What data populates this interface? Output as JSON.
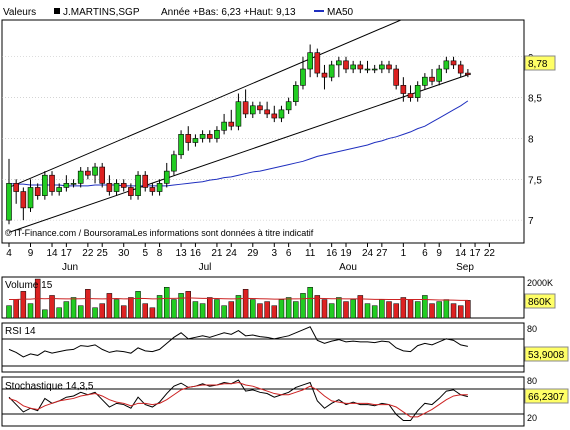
{
  "colors": {
    "up": "#22cc22",
    "down": "#dd2222",
    "ma50": "#1f2fbf",
    "badge_bg": "#ffff66",
    "panel_border": "#000000",
    "signal": "#cc2222",
    "fill": "#e8e8e8"
  },
  "header": {
    "valeurs": "Valeurs",
    "symbol": "J.MARTINS,SGP",
    "stats": "Année +Bas: 6,23 +Haut: 9,13",
    "ma_label": "MA50"
  },
  "source_note": "© IT-Finance.com / BoursoramaLes informations sont données à titre indicatif",
  "x_axis": {
    "day_labels": [
      "4",
      "9",
      "14",
      "17",
      "22",
      "25",
      "30",
      "5",
      "8",
      "13",
      "16",
      "21",
      "24",
      "29",
      "3",
      "6",
      "11",
      "16",
      "19",
      "24",
      "27",
      "1",
      "6",
      "9",
      "14",
      "17",
      "22"
    ],
    "month_labels": [
      "Jun",
      "Jul",
      "Aou",
      "Sep"
    ]
  },
  "chart_data": [
    {
      "type": "candlestick",
      "name": "price",
      "ylim": [
        6.72,
        9.45
      ],
      "y_ticks": [
        "7",
        "7,5",
        "8",
        "8,5",
        "9"
      ],
      "last_value_badge": "8,78",
      "candles": [
        [
          7.0,
          7.75,
          6.95,
          7.45
        ],
        [
          7.45,
          7.5,
          7.2,
          7.35
        ],
        [
          7.35,
          7.4,
          7.0,
          7.15
        ],
        [
          7.15,
          7.5,
          7.1,
          7.4
        ],
        [
          7.4,
          7.45,
          7.25,
          7.3
        ],
        [
          7.3,
          7.6,
          7.25,
          7.55
        ],
        [
          7.55,
          7.6,
          7.3,
          7.35
        ],
        [
          7.35,
          7.45,
          7.3,
          7.4
        ],
        [
          7.4,
          7.55,
          7.35,
          7.45
        ],
        [
          7.45,
          7.5,
          7.4,
          7.45
        ],
        [
          7.45,
          7.65,
          7.4,
          7.6
        ],
        [
          7.6,
          7.65,
          7.5,
          7.55
        ],
        [
          7.55,
          7.7,
          7.45,
          7.65
        ],
        [
          7.65,
          7.7,
          7.4,
          7.45
        ],
        [
          7.45,
          7.55,
          7.3,
          7.35
        ],
        [
          7.35,
          7.5,
          7.3,
          7.45
        ],
        [
          7.45,
          7.5,
          7.35,
          7.4
        ],
        [
          7.4,
          7.45,
          7.25,
          7.3
        ],
        [
          7.3,
          7.6,
          7.25,
          7.55
        ],
        [
          7.55,
          7.6,
          7.35,
          7.4
        ],
        [
          7.4,
          7.45,
          7.3,
          7.35
        ],
        [
          7.35,
          7.5,
          7.3,
          7.45
        ],
        [
          7.45,
          7.7,
          7.4,
          7.6
        ],
        [
          7.6,
          7.85,
          7.55,
          7.8
        ],
        [
          7.8,
          8.1,
          7.75,
          8.05
        ],
        [
          8.05,
          8.15,
          7.85,
          7.95
        ],
        [
          7.95,
          8.05,
          7.9,
          8.0
        ],
        [
          8.0,
          8.1,
          7.95,
          8.05
        ],
        [
          8.05,
          8.1,
          7.95,
          8.0
        ],
        [
          8.0,
          8.15,
          7.95,
          8.1
        ],
        [
          8.1,
          8.3,
          8.05,
          8.2
        ],
        [
          8.2,
          8.35,
          8.1,
          8.15
        ],
        [
          8.15,
          8.55,
          8.1,
          8.45
        ],
        [
          8.45,
          8.6,
          8.25,
          8.3
        ],
        [
          8.3,
          8.45,
          8.25,
          8.4
        ],
        [
          8.4,
          8.45,
          8.3,
          8.35
        ],
        [
          8.35,
          8.45,
          8.25,
          8.3
        ],
        [
          8.3,
          8.4,
          8.2,
          8.25
        ],
        [
          8.25,
          8.4,
          8.2,
          8.35
        ],
        [
          8.35,
          8.5,
          8.3,
          8.45
        ],
        [
          8.45,
          8.7,
          8.4,
          8.65
        ],
        [
          8.65,
          9.0,
          8.6,
          8.85
        ],
        [
          8.85,
          9.15,
          8.75,
          9.05
        ],
        [
          9.05,
          9.1,
          8.75,
          8.8
        ],
        [
          8.8,
          8.9,
          8.6,
          8.75
        ],
        [
          8.75,
          8.95,
          8.7,
          8.9
        ],
        [
          8.9,
          9.0,
          8.75,
          8.95
        ],
        [
          8.95,
          9.0,
          8.8,
          8.85
        ],
        [
          8.85,
          8.95,
          8.8,
          8.9
        ],
        [
          8.9,
          8.95,
          8.8,
          8.85
        ],
        [
          8.85,
          8.95,
          8.8,
          8.85
        ],
        [
          8.85,
          8.9,
          8.8,
          8.85
        ],
        [
          8.85,
          8.95,
          8.8,
          8.9
        ],
        [
          8.9,
          8.95,
          8.8,
          8.85
        ],
        [
          8.85,
          8.9,
          8.6,
          8.65
        ],
        [
          8.65,
          8.75,
          8.45,
          8.55
        ],
        [
          8.55,
          8.65,
          8.45,
          8.5
        ],
        [
          8.5,
          8.7,
          8.45,
          8.65
        ],
        [
          8.65,
          8.8,
          8.6,
          8.75
        ],
        [
          8.75,
          8.85,
          8.65,
          8.7
        ],
        [
          8.7,
          8.9,
          8.65,
          8.85
        ],
        [
          8.85,
          9.0,
          8.8,
          8.95
        ],
        [
          8.95,
          9.0,
          8.85,
          8.9
        ],
        [
          8.9,
          8.95,
          8.75,
          8.8
        ],
        [
          8.8,
          8.85,
          8.75,
          8.78
        ]
      ],
      "ma50": [
        7.45,
        7.44,
        7.44,
        7.43,
        7.43,
        7.43,
        7.43,
        7.43,
        7.42,
        7.42,
        7.42,
        7.42,
        7.43,
        7.43,
        7.43,
        7.43,
        7.42,
        7.42,
        7.42,
        7.42,
        7.42,
        7.42,
        7.42,
        7.43,
        7.44,
        7.45,
        7.46,
        7.47,
        7.49,
        7.5,
        7.52,
        7.53,
        7.55,
        7.57,
        7.59,
        7.6,
        7.62,
        7.64,
        7.66,
        7.68,
        7.7,
        7.72,
        7.75,
        7.78,
        7.8,
        7.82,
        7.84,
        7.86,
        7.88,
        7.9,
        7.92,
        7.95,
        7.97,
        8.0,
        8.02,
        8.05,
        8.08,
        8.12,
        8.15,
        8.2,
        8.25,
        8.3,
        8.35,
        8.4,
        8.46
      ],
      "trendlines": [
        {
          "from": [
            0,
            7.4
          ],
          "to": [
            64,
            9.8
          ]
        },
        {
          "from": [
            0,
            6.85
          ],
          "to": [
            64,
            8.78
          ]
        }
      ]
    },
    {
      "type": "bar",
      "name": "Volume 15",
      "title": "Volume 15",
      "y_ticks": [
        "2000K"
      ],
      "last_value_badge": "860K",
      "ylim": [
        0,
        2000
      ],
      "values": [
        600,
        900,
        1300,
        700,
        1900,
        400,
        1100,
        500,
        800,
        1000,
        600,
        1400,
        500,
        700,
        1200,
        900,
        600,
        1000,
        1300,
        700,
        500,
        1100,
        1500,
        900,
        1200,
        1300,
        800,
        700,
        1000,
        900,
        600,
        800,
        1100,
        1400,
        900,
        700,
        800,
        600,
        900,
        1000,
        800,
        1200,
        1500,
        1100,
        900,
        700,
        1000,
        800,
        900,
        1100,
        700,
        600,
        900,
        800,
        700,
        1000,
        900,
        800,
        1100,
        700,
        800,
        900,
        700,
        600,
        860
      ],
      "ma": [
        900,
        900,
        920,
        920,
        950,
        940,
        950,
        940,
        930,
        930,
        940,
        950,
        940,
        930,
        940,
        950,
        930,
        940,
        960,
        950,
        930,
        940,
        960,
        960,
        970,
        980,
        970,
        960,
        960,
        950,
        940,
        930,
        940,
        960,
        950,
        940,
        930,
        920,
        920,
        930,
        930,
        940,
        960,
        960,
        950,
        940,
        940,
        930,
        930,
        930,
        920,
        910,
        910,
        900,
        900,
        900,
        900,
        900,
        900,
        890,
        880,
        880,
        870,
        860,
        860
      ]
    },
    {
      "type": "line",
      "name": "RSI 14",
      "title": "RSI 14",
      "y_ticks": [
        "80"
      ],
      "ylim": [
        20,
        85
      ],
      "last_value_badge": "53,9008",
      "series": [
        {
          "values": [
            50,
            46,
            40,
            44,
            42,
            48,
            45,
            47,
            49,
            50,
            55,
            54,
            56,
            50,
            46,
            48,
            47,
            45,
            52,
            48,
            47,
            50,
            58,
            66,
            72,
            64,
            66,
            68,
            66,
            69,
            72,
            70,
            75,
            68,
            69,
            67,
            66,
            64,
            66,
            68,
            72,
            76,
            80,
            62,
            58,
            61,
            63,
            60,
            61,
            60,
            60,
            59,
            61,
            60,
            52,
            48,
            47,
            55,
            58,
            56,
            60,
            64,
            62,
            56,
            54
          ]
        }
      ]
    },
    {
      "type": "line",
      "name": "Stochastique 14,3,5",
      "title": "Stochastique 14,3,5",
      "y_ticks": [
        "80",
        "20"
      ],
      "ylim": [
        15,
        95
      ],
      "last_value_badge": "66,2307",
      "series": [
        {
          "values": [
            62,
            50,
            38,
            44,
            40,
            60,
            52,
            56,
            62,
            64,
            70,
            66,
            70,
            58,
            46,
            52,
            50,
            44,
            62,
            50,
            46,
            54,
            68,
            80,
            85,
            78,
            80,
            84,
            80,
            82,
            86,
            84,
            90,
            72,
            74,
            70,
            68,
            62,
            66,
            70,
            78,
            82,
            86,
            56,
            44,
            52,
            58,
            50,
            54,
            50,
            50,
            48,
            52,
            50,
            34,
            24,
            24,
            40,
            52,
            50,
            60,
            72,
            74,
            66,
            63
          ]
        },
        {
          "values": [
            60,
            56,
            48,
            44,
            42,
            48,
            52,
            56,
            58,
            60,
            64,
            66,
            68,
            64,
            58,
            54,
            52,
            48,
            52,
            52,
            50,
            52,
            58,
            66,
            74,
            78,
            80,
            82,
            82,
            82,
            84,
            84,
            86,
            82,
            80,
            76,
            72,
            68,
            66,
            66,
            70,
            74,
            80,
            74,
            64,
            56,
            54,
            52,
            52,
            52,
            52,
            50,
            50,
            50,
            46,
            38,
            30,
            30,
            36,
            42,
            50,
            58,
            64,
            66,
            66
          ]
        }
      ]
    }
  ]
}
